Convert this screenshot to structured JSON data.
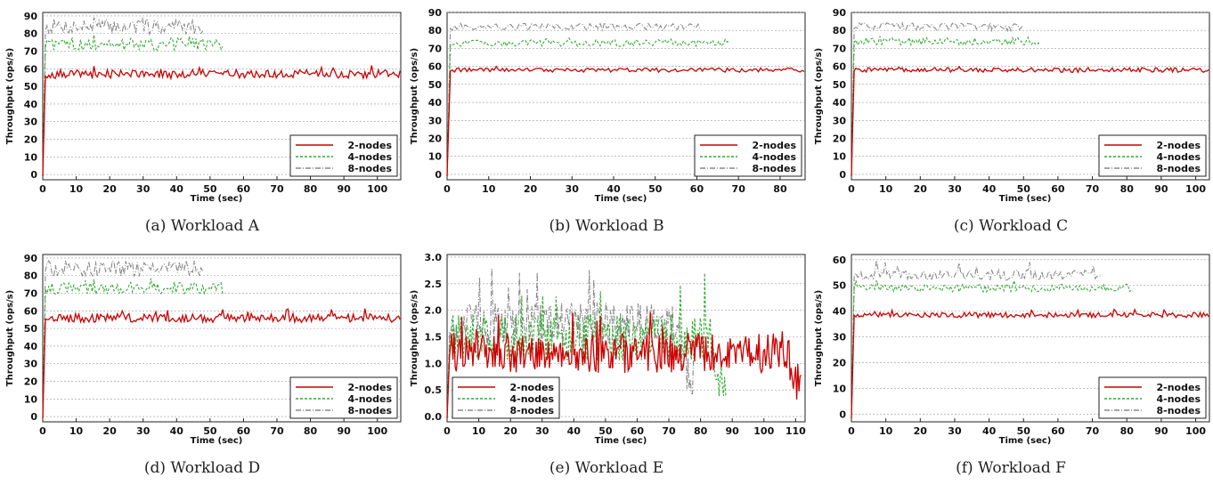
{
  "colors": {
    "n2": "#cc0000",
    "n4": "#33aa33",
    "n8": "#888888"
  },
  "chart_data": [
    {
      "id": "a",
      "type": "line",
      "caption": "(a) Workload A",
      "xlabel": "Time (sec)",
      "ylabel": "Throughput (ops/s)",
      "xlim": [
        0,
        107
      ],
      "ylim": [
        -3,
        92
      ],
      "xticks": [
        0,
        10,
        20,
        30,
        40,
        50,
        60,
        70,
        80,
        90,
        100
      ],
      "yticks": [
        0,
        10,
        20,
        30,
        40,
        50,
        60,
        70,
        80,
        90
      ],
      "tick_decimals": 0,
      "legend": "bottom-right",
      "series": [
        {
          "name": "2-nodes",
          "key": "n2",
          "end": 107,
          "level": 57,
          "amp": 2.5,
          "peak": 62
        },
        {
          "name": "4-nodes",
          "key": "n4",
          "end": 54,
          "level": 74,
          "amp": 3.5,
          "peak": 80
        },
        {
          "name": "8-nodes",
          "key": "n8",
          "end": 48,
          "level": 84,
          "amp": 4.5,
          "peak": 90
        }
      ]
    },
    {
      "id": "b",
      "type": "line",
      "caption": "(b) Workload B",
      "xlabel": "Time (sec)",
      "ylabel": "Throughput (ops/s)",
      "xlim": [
        0,
        86
      ],
      "ylim": [
        -3,
        90
      ],
      "xticks": [
        0,
        10,
        20,
        30,
        40,
        50,
        60,
        70,
        80
      ],
      "yticks": [
        0,
        10,
        20,
        30,
        40,
        50,
        60,
        70,
        80,
        90
      ],
      "tick_decimals": 0,
      "legend": "bottom-right",
      "series": [
        {
          "name": "2-nodes",
          "key": "n2",
          "end": 86,
          "level": 58,
          "amp": 1.2,
          "peak": 60
        },
        {
          "name": "4-nodes",
          "key": "n4",
          "end": 68,
          "level": 73,
          "amp": 2.0,
          "peak": 76
        },
        {
          "name": "8-nodes",
          "key": "n8",
          "end": 61,
          "level": 82,
          "amp": 2.0,
          "peak": 85
        }
      ]
    },
    {
      "id": "c",
      "type": "line",
      "caption": "(c) Workload C",
      "xlabel": "Time (sec)",
      "ylabel": "Throughput (ops/s)",
      "xlim": [
        0,
        104
      ],
      "ylim": [
        -3,
        90
      ],
      "xticks": [
        0,
        10,
        20,
        30,
        40,
        50,
        60,
        70,
        80,
        90,
        100
      ],
      "yticks": [
        0,
        10,
        20,
        30,
        40,
        50,
        60,
        70,
        80,
        90
      ],
      "tick_decimals": 0,
      "legend": "bottom-right",
      "series": [
        {
          "name": "2-nodes",
          "key": "n2",
          "end": 104,
          "level": 58,
          "amp": 1.3,
          "peak": 60
        },
        {
          "name": "4-nodes",
          "key": "n4",
          "end": 55,
          "level": 74,
          "amp": 2.0,
          "peak": 77
        },
        {
          "name": "8-nodes",
          "key": "n8",
          "end": 50,
          "level": 82,
          "amp": 2.2,
          "peak": 85
        }
      ]
    },
    {
      "id": "d",
      "type": "line",
      "caption": "(d) Workload D",
      "xlabel": "Time (sec)",
      "ylabel": "Throughput (ops/s)",
      "xlim": [
        0,
        107
      ],
      "ylim": [
        -3,
        92
      ],
      "xticks": [
        0,
        10,
        20,
        30,
        40,
        50,
        60,
        70,
        80,
        90,
        100
      ],
      "yticks": [
        0,
        10,
        20,
        30,
        40,
        50,
        60,
        70,
        80,
        90
      ],
      "tick_decimals": 0,
      "legend": "bottom-right",
      "series": [
        {
          "name": "2-nodes",
          "key": "n2",
          "end": 107,
          "level": 56,
          "amp": 2.5,
          "peak": 62
        },
        {
          "name": "4-nodes",
          "key": "n4",
          "end": 54,
          "level": 73,
          "amp": 3.5,
          "peak": 79
        },
        {
          "name": "8-nodes",
          "key": "n8",
          "end": 48,
          "level": 84,
          "amp": 4.5,
          "peak": 90
        }
      ]
    },
    {
      "id": "e",
      "type": "line",
      "caption": "(e) Workload E",
      "xlabel": "Time (sec)",
      "ylabel": "Throughput (ops/s)",
      "xlim": [
        0,
        113
      ],
      "ylim": [
        -0.1,
        3.05
      ],
      "xticks": [
        0,
        10,
        20,
        30,
        40,
        50,
        60,
        70,
        80,
        90,
        100,
        110
      ],
      "yticks": [
        0.0,
        0.5,
        1.0,
        1.5,
        2.0,
        2.5,
        3.0
      ],
      "tick_decimals": 1,
      "legend": "bottom-left",
      "series": [
        {
          "name": "2-nodes",
          "key": "n2",
          "end": 112,
          "level": 1.2,
          "amp": 0.38,
          "peak": 2.0
        },
        {
          "name": "4-nodes",
          "key": "n4",
          "end": 88,
          "level": 1.5,
          "amp": 0.45,
          "peak": 2.8
        },
        {
          "name": "8-nodes",
          "key": "n8",
          "end": 78,
          "level": 1.7,
          "amp": 0.45,
          "peak": 2.8
        }
      ]
    },
    {
      "id": "f",
      "type": "line",
      "caption": "(f) Workload F",
      "xlabel": "Time (sec)",
      "ylabel": "Throughput (ops/s)",
      "xlim": [
        0,
        104
      ],
      "ylim": [
        -3,
        62
      ],
      "xticks": [
        0,
        10,
        20,
        30,
        40,
        50,
        60,
        70,
        80,
        90,
        100
      ],
      "yticks": [
        0,
        10,
        20,
        30,
        40,
        50,
        60
      ],
      "tick_decimals": 0,
      "legend": "bottom-right",
      "series": [
        {
          "name": "2-nodes",
          "key": "n2",
          "end": 104,
          "level": 38.5,
          "amp": 1.0,
          "peak": 41
        },
        {
          "name": "4-nodes",
          "key": "n4",
          "end": 82,
          "level": 49,
          "amp": 1.5,
          "peak": 52
        },
        {
          "name": "8-nodes",
          "key": "n8",
          "end": 73,
          "level": 54,
          "amp": 2.0,
          "peak": 60
        }
      ]
    }
  ]
}
